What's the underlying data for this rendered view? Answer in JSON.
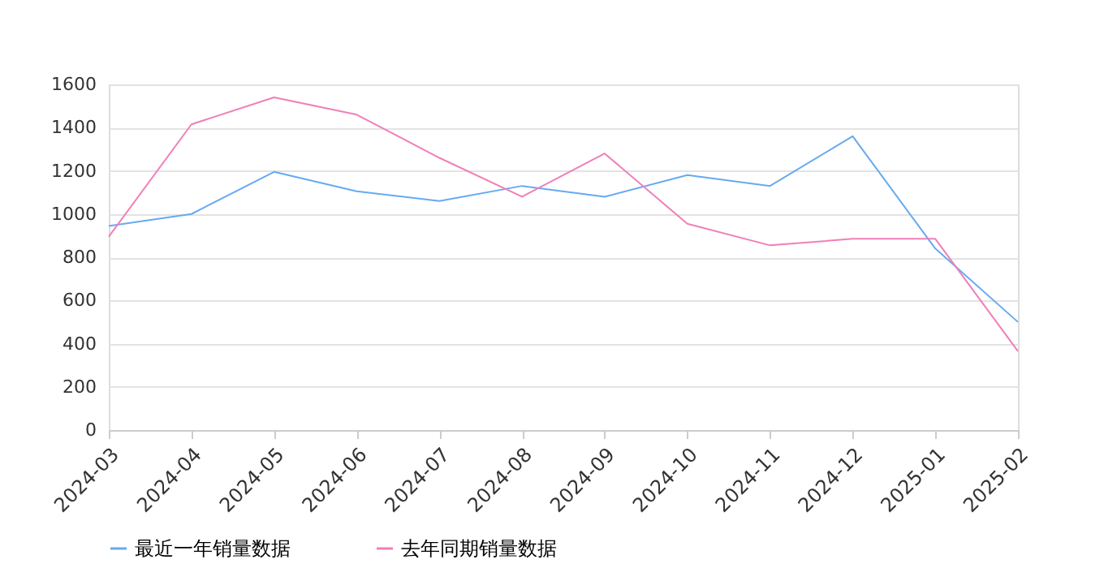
{
  "chart_data": {
    "type": "line",
    "categories": [
      "2024-03",
      "2024-04",
      "2024-05",
      "2024-06",
      "2024-07",
      "2024-08",
      "2024-09",
      "2024-10",
      "2024-11",
      "2024-12",
      "2025-01",
      "2025-02"
    ],
    "series": [
      {
        "name": "最近一年销量数据",
        "color": "#66aaf0",
        "values": [
          945,
          1000,
          1195,
          1105,
          1060,
          1130,
          1080,
          1180,
          1130,
          1360,
          840,
          500
        ]
      },
      {
        "name": "去年同期销量数据",
        "color": "#f07fb8",
        "values": [
          895,
          1415,
          1540,
          1460,
          1260,
          1080,
          1280,
          955,
          855,
          885,
          885,
          365
        ]
      }
    ],
    "ylim": [
      0,
      1600
    ],
    "yticks": [
      0,
      200,
      400,
      600,
      800,
      1000,
      1200,
      1400,
      1600
    ],
    "grid": "y",
    "legend": "bottom",
    "marker": "none",
    "line_style": "solid"
  }
}
